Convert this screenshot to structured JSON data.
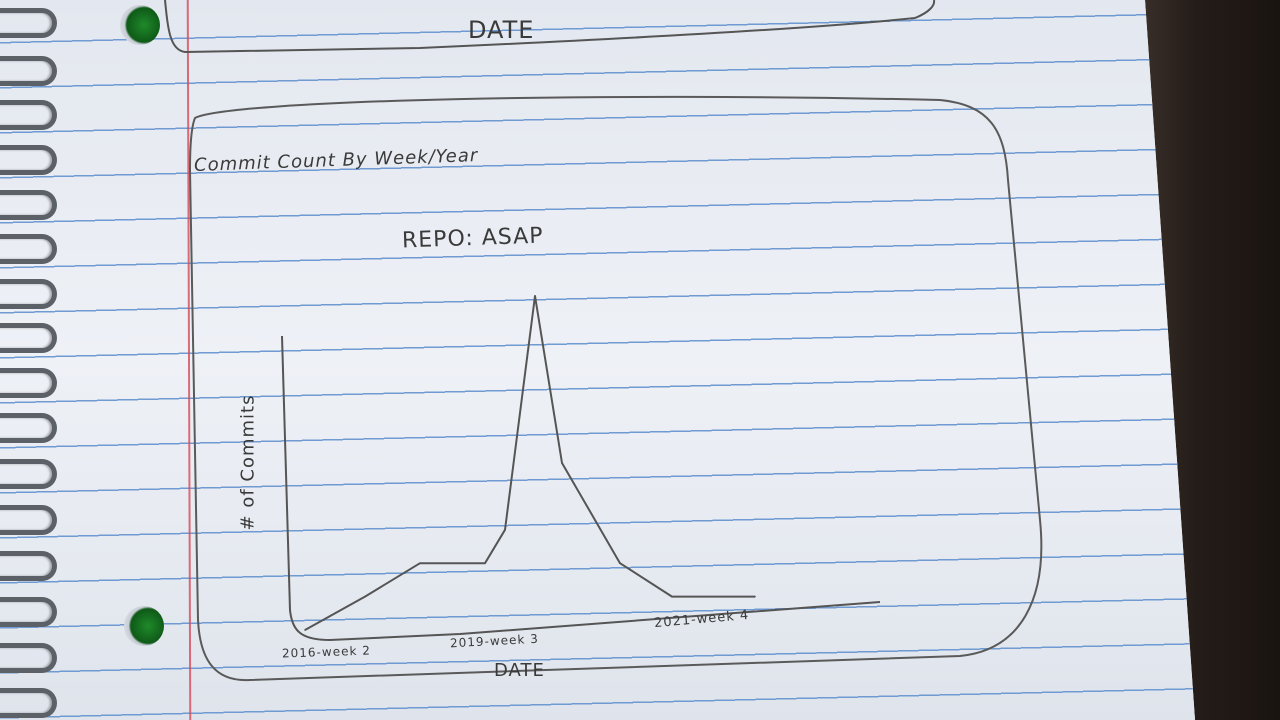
{
  "top_box": {
    "label": "DATE"
  },
  "chart": {
    "title": "Commit Count By Week/Year",
    "subtitle": "REPO: ASAP"
  },
  "chart_data": {
    "type": "line",
    "title": "Commit Count By Week/Year",
    "subtitle": "REPO: ASAP",
    "xlabel": "DATE",
    "ylabel": "# of Commits",
    "x_tick_labels": [
      "2016-week 2",
      "2019-week 3",
      "2021-week 4"
    ],
    "series": [
      {
        "values": [
          0,
          1,
          2,
          2,
          3,
          10,
          5,
          2,
          1,
          1
        ]
      }
    ]
  },
  "colors": {
    "paper": "#e9ecf3",
    "rule_line": "#6f9ad2",
    "margin_line": "#d44a5a",
    "pencil": "#555555",
    "punch_hole": "#1f8a2a"
  }
}
